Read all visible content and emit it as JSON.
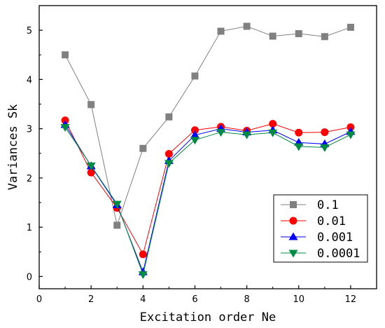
{
  "chart_data": {
    "type": "line",
    "xlabel": "Excitation order Ne",
    "ylabel": "Variances Sk",
    "xlim": [
      0,
      13
    ],
    "ylim": [
      -0.25,
      5.5
    ],
    "xticks": [
      0,
      2,
      4,
      6,
      8,
      10,
      12
    ],
    "yticks": [
      0,
      1,
      2,
      3,
      4,
      5
    ],
    "grid": false,
    "legend_position": "bottom-right",
    "x": [
      1,
      2,
      3,
      4,
      5,
      6,
      7,
      8,
      9,
      10,
      11,
      12
    ],
    "series": [
      {
        "name": "0.1",
        "color": "#808080",
        "marker": "square",
        "values": [
          4.5,
          3.49,
          1.04,
          2.6,
          3.24,
          4.07,
          4.98,
          5.08,
          4.88,
          4.93,
          4.87,
          5.06
        ]
      },
      {
        "name": "0.01",
        "color": "#ff0000",
        "marker": "circle",
        "values": [
          3.17,
          2.11,
          1.39,
          0.45,
          2.49,
          2.97,
          3.04,
          2.96,
          3.1,
          2.92,
          2.93,
          3.03
        ]
      },
      {
        "name": "0.001",
        "color": "#0000ff",
        "marker": "triangle-up",
        "values": [
          3.08,
          2.24,
          1.45,
          0.09,
          2.35,
          2.87,
          3.0,
          2.93,
          2.97,
          2.72,
          2.69,
          2.94
        ]
      },
      {
        "name": "0.0001",
        "color": "#008b45",
        "marker": "triangle-down",
        "values": [
          3.03,
          2.25,
          1.47,
          0.04,
          2.3,
          2.77,
          2.93,
          2.88,
          2.92,
          2.64,
          2.62,
          2.88
        ]
      }
    ]
  }
}
